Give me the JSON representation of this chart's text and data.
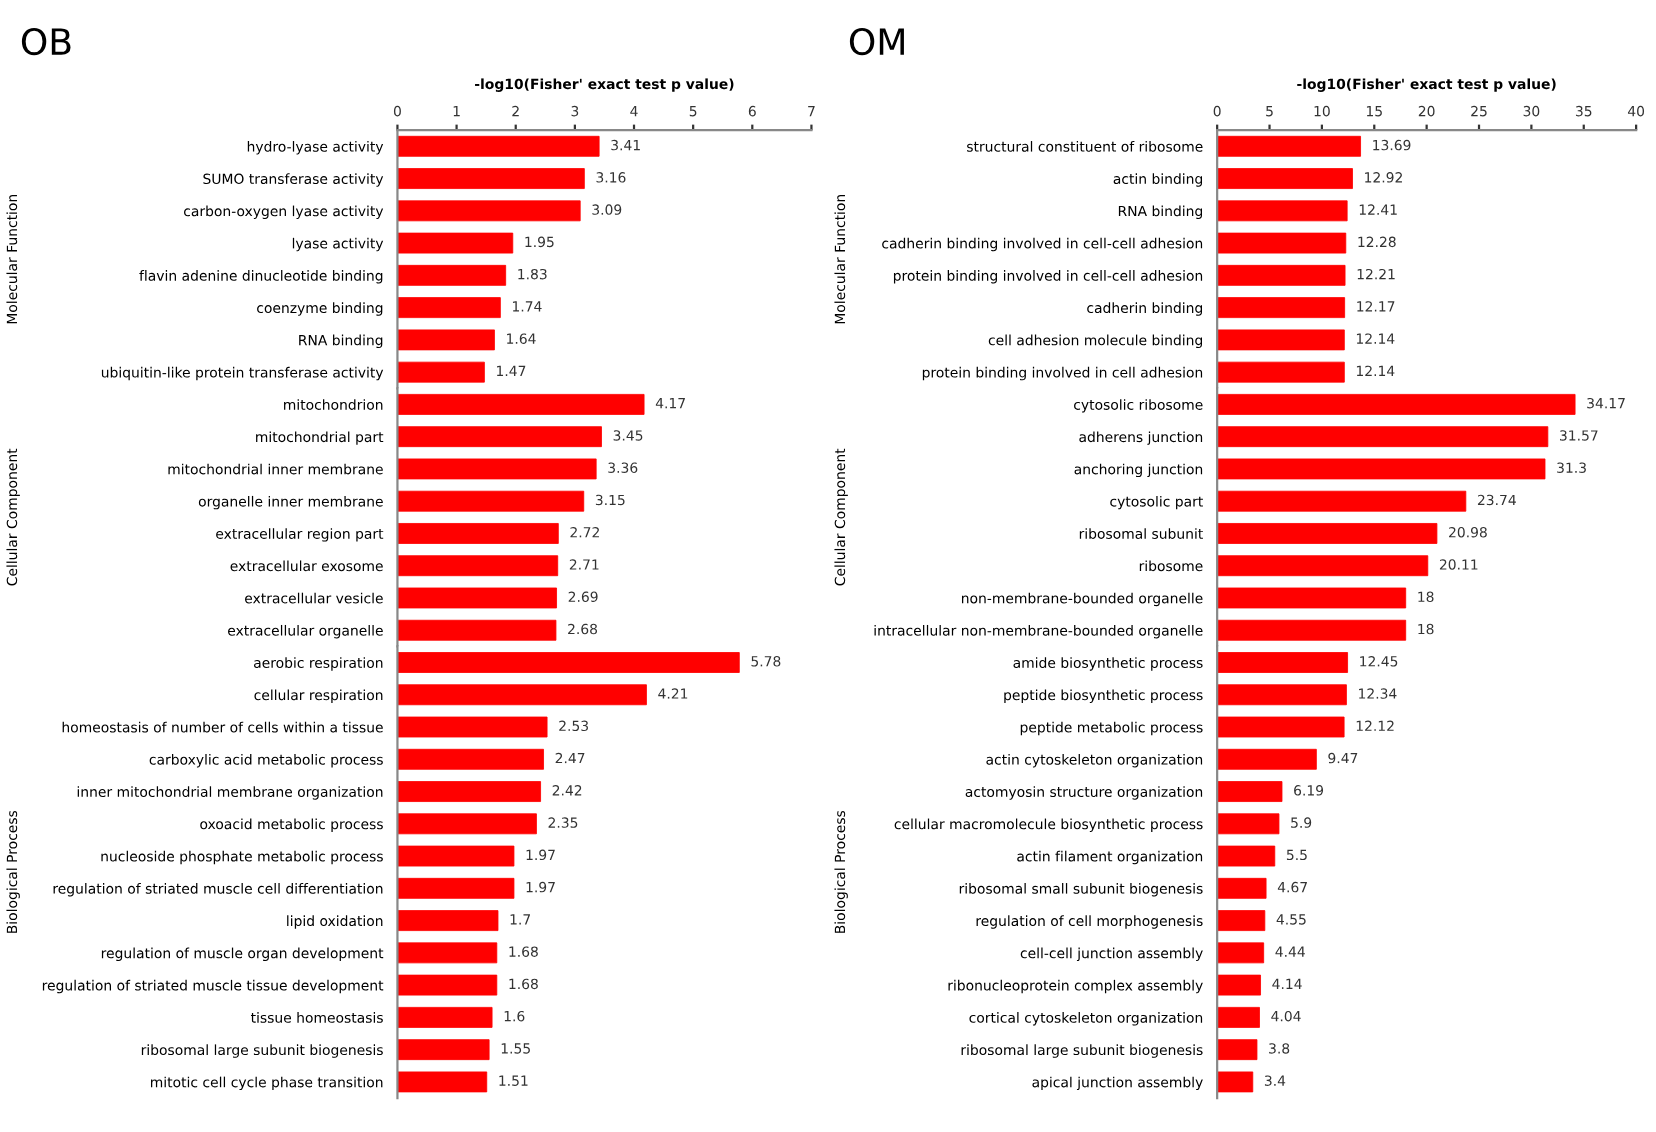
{
  "chart_data": [
    {
      "type": "bar",
      "orientation": "horizontal",
      "title": "OB",
      "xlabel": "-log10(Fisher' exact test p value)",
      "ylabel": "Molecular Function",
      "color": "#ff0000",
      "data_labels": true,
      "xlim": [
        0,
        7
      ],
      "xticks": [
        0,
        1,
        2,
        3,
        4,
        5,
        6,
        7
      ],
      "categories": [
        "hydro-lyase activity",
        "SUMO transferase activity",
        "carbon-oxygen lyase activity",
        "lyase activity",
        "flavin adenine dinucleotide binding",
        "coenzyme binding",
        "RNA binding",
        "ubiquitin-like protein transferase activity"
      ],
      "values": [
        3.41,
        3.16,
        3.09,
        1.95,
        1.83,
        1.74,
        1.64,
        1.47
      ]
    },
    {
      "type": "bar",
      "orientation": "horizontal",
      "ylabel": "Cellular Component",
      "color": "#ff0000",
      "data_labels": true,
      "xlim": [
        0,
        7
      ],
      "tick_labels": "y",
      "categories": [
        "mitochondrion",
        "mitochondrial part",
        "mitochondrial inner membrane",
        "organelle inner membrane",
        "extracellular region part",
        "extracellular exosome",
        "extracellular vesicle",
        "extracellular organelle"
      ],
      "values": [
        4.17,
        3.45,
        3.36,
        3.15,
        2.72,
        2.71,
        2.69,
        2.68
      ]
    },
    {
      "type": "bar",
      "orientation": "horizontal",
      "ylabel": "Biological Process",
      "color": "#ff0000",
      "data_labels": true,
      "xlim": [
        0,
        7
      ],
      "tick_labels": "y",
      "categories": [
        "aerobic respiration",
        "cellular respiration",
        "homeostasis of number of cells within a tissue",
        "carboxylic acid metabolic process",
        "inner mitochondrial membrane organization",
        "oxoacid metabolic process",
        "nucleoside phosphate metabolic process",
        "regulation of striated muscle cell differentiation",
        "lipid oxidation",
        "regulation of muscle organ development",
        "regulation of striated muscle tissue development",
        "tissue homeostasis",
        "ribosomal large subunit biogenesis",
        "mitotic cell cycle phase transition"
      ],
      "values": [
        5.78,
        4.21,
        2.53,
        2.47,
        2.42,
        2.35,
        1.97,
        1.97,
        1.7,
        1.68,
        1.68,
        1.6,
        1.55,
        1.51
      ]
    },
    {
      "type": "bar",
      "orientation": "horizontal",
      "title": "OM",
      "xlabel": "-log10(Fisher' exact test p value)",
      "ylabel": "Molecular Function",
      "color": "#ff0000",
      "data_labels": true,
      "xlim": [
        0,
        40
      ],
      "xticks": [
        0,
        5,
        10,
        15,
        20,
        25,
        30,
        35,
        40
      ],
      "categories": [
        "structural constituent of ribosome",
        "actin binding",
        "RNA binding",
        "cadherin binding involved in cell-cell adhesion",
        "protein binding involved in cell-cell adhesion",
        "cadherin binding",
        "cell adhesion molecule binding",
        "protein binding involved in cell adhesion"
      ],
      "values": [
        13.69,
        12.92,
        12.41,
        12.28,
        12.21,
        12.17,
        12.14,
        12.14
      ]
    },
    {
      "type": "bar",
      "orientation": "horizontal",
      "ylabel": "Cellular Component",
      "color": "#ff0000",
      "data_labels": true,
      "xlim": [
        0,
        40
      ],
      "tick_labels": "y",
      "categories": [
        "cytosolic ribosome",
        "adherens junction",
        "anchoring junction",
        "cytosolic part",
        "ribosomal subunit",
        "ribosome",
        "non-membrane-bounded organelle",
        "intracellular non-membrane-bounded organelle"
      ],
      "values": [
        34.17,
        31.57,
        31.3,
        23.74,
        20.98,
        20.11,
        18,
        18
      ]
    },
    {
      "type": "bar",
      "orientation": "horizontal",
      "ylabel": "Biological Process",
      "color": "#ff0000",
      "data_labels": true,
      "xlim": [
        0,
        40
      ],
      "tick_labels": "y",
      "categories": [
        "amide biosynthetic process",
        "peptide biosynthetic process",
        "peptide metabolic process",
        "actin cytoskeleton organization",
        "actomyosin structure organization",
        "cellular macromolecule biosynthetic process",
        "actin filament organization",
        "ribosomal small subunit biogenesis",
        "regulation of cell morphogenesis",
        "cell-cell junction assembly",
        "ribonucleoprotein complex assembly",
        "cortical cytoskeleton organization",
        "ribosomal large subunit biogenesis",
        "apical junction assembly"
      ],
      "values": [
        12.45,
        12.34,
        12.12,
        9.47,
        6.19,
        5.9,
        5.5,
        4.67,
        4.55,
        4.44,
        4.14,
        4.04,
        3.8,
        3.4
      ]
    }
  ]
}
